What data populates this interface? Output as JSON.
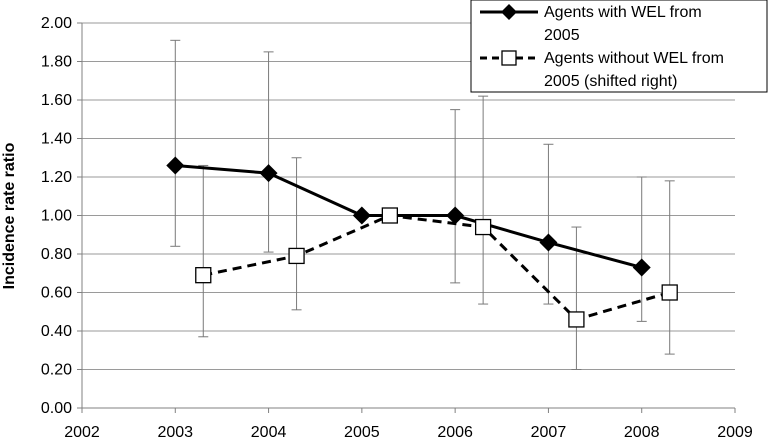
{
  "chart_data": {
    "type": "line",
    "title": "",
    "xlabel": "",
    "ylabel": "Incidence rate ratio",
    "xlim": [
      2002,
      2009
    ],
    "ylim": [
      0,
      2
    ],
    "x_ticks": [
      "2002",
      "2003",
      "2004",
      "2005",
      "2006",
      "2007",
      "2008",
      "2009"
    ],
    "y_ticks": [
      "0.00",
      "0.20",
      "0.40",
      "0.60",
      "0.80",
      "1.00",
      "1.20",
      "1.40",
      "1.60",
      "1.80",
      "2.00"
    ],
    "grid": "horizontal",
    "legend_position": "top-right",
    "series": [
      {
        "name": "Agents with WEL from 2005",
        "legend_lines": [
          "Agents with WEL from",
          "2005"
        ],
        "style": "solid",
        "marker": "filled-diamond",
        "color": "#000000",
        "x": [
          2003,
          2004,
          2005,
          2006,
          2007,
          2008
        ],
        "values": [
          1.26,
          1.22,
          1.0,
          1.0,
          0.86,
          0.73
        ],
        "ci_low": [
          0.84,
          0.81,
          1.0,
          0.65,
          0.54,
          0.45
        ],
        "ci_high": [
          1.91,
          1.85,
          1.0,
          1.55,
          1.37,
          1.2
        ]
      },
      {
        "name": "Agents without WEL from 2005 (shifted right)",
        "legend_lines": [
          "Agents without WEL from",
          "2005 (shifted right)"
        ],
        "style": "dashed",
        "marker": "open-square",
        "color": "#000000",
        "x": [
          2003.3,
          2004.3,
          2005.3,
          2006.3,
          2007.3,
          2008.3
        ],
        "values": [
          0.69,
          0.79,
          1.0,
          0.94,
          0.46,
          0.6
        ],
        "ci_low": [
          0.37,
          0.51,
          1.0,
          0.54,
          0.2,
          0.28
        ],
        "ci_high": [
          1.26,
          1.3,
          1.0,
          1.62,
          0.94,
          1.18
        ]
      }
    ]
  }
}
